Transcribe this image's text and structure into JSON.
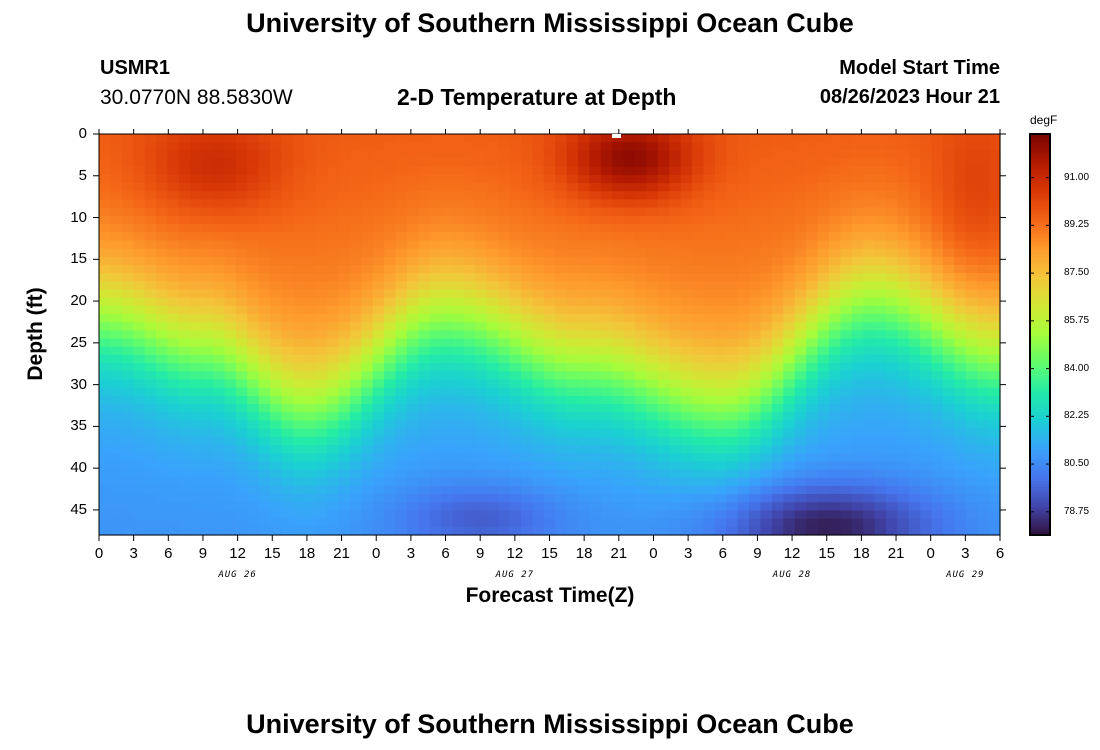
{
  "header": {
    "title": "University of Southern Mississippi Ocean Cube",
    "station_id": "USMR1",
    "coordinates": "30.0770N  88.5830W",
    "plot_title": "2-D Temperature at Depth",
    "model_start_label": "Model Start Time",
    "model_start_value": "08/26/2023 Hour 21"
  },
  "footer": {
    "title": "University of Southern Mississippi Ocean Cube"
  },
  "chart_data": {
    "type": "heatmap",
    "title": "2-D Temperature at Depth",
    "xlabel": "Forecast Time(Z)",
    "ylabel": "Depth (ft)",
    "x_hours_start": 0,
    "x_hours_end": 78,
    "xticks": [
      {
        "hour": 0,
        "label": "0"
      },
      {
        "hour": 3,
        "label": "3"
      },
      {
        "hour": 6,
        "label": "6"
      },
      {
        "hour": 9,
        "label": "9"
      },
      {
        "hour": 12,
        "label": "12"
      },
      {
        "hour": 15,
        "label": "15"
      },
      {
        "hour": 18,
        "label": "18"
      },
      {
        "hour": 21,
        "label": "21"
      },
      {
        "hour": 24,
        "label": "0"
      },
      {
        "hour": 27,
        "label": "3"
      },
      {
        "hour": 30,
        "label": "6"
      },
      {
        "hour": 33,
        "label": "9"
      },
      {
        "hour": 36,
        "label": "12"
      },
      {
        "hour": 39,
        "label": "15"
      },
      {
        "hour": 42,
        "label": "18"
      },
      {
        "hour": 45,
        "label": "21"
      },
      {
        "hour": 48,
        "label": "0"
      },
      {
        "hour": 51,
        "label": "3"
      },
      {
        "hour": 54,
        "label": "6"
      },
      {
        "hour": 57,
        "label": "9"
      },
      {
        "hour": 60,
        "label": "12"
      },
      {
        "hour": 63,
        "label": "15"
      },
      {
        "hour": 66,
        "label": "18"
      },
      {
        "hour": 69,
        "label": "21"
      },
      {
        "hour": 72,
        "label": "0"
      },
      {
        "hour": 75,
        "label": "3"
      },
      {
        "hour": 78,
        "label": "6"
      }
    ],
    "date_labels": [
      {
        "hour": 12,
        "label": "AUG 26"
      },
      {
        "hour": 36,
        "label": "AUG 27"
      },
      {
        "hour": 60,
        "label": "AUG 28"
      },
      {
        "hour": 75,
        "label": "AUG 29"
      }
    ],
    "depth_range_ft": [
      0,
      48
    ],
    "yticks": [
      0,
      5,
      10,
      15,
      20,
      25,
      30,
      35,
      40,
      45
    ],
    "colorbar": {
      "unit": "degF",
      "range": [
        77.9,
        92.6
      ],
      "ticks": [
        "78.75",
        "80.50",
        "82.25",
        "84.00",
        "85.75",
        "87.50",
        "89.25",
        "91.00"
      ]
    },
    "thermocline_depth_ft": [
      {
        "hour": 0,
        "depth": 22
      },
      {
        "hour": 9,
        "depth": 26
      },
      {
        "hour": 18,
        "depth": 33
      },
      {
        "hour": 30,
        "depth": 22
      },
      {
        "hour": 42,
        "depth": 28
      },
      {
        "hour": 54,
        "depth": 33
      },
      {
        "hour": 67,
        "depth": 20
      },
      {
        "hour": 78,
        "depth": 27
      }
    ],
    "features": {
      "warm_core_1": {
        "hour": 10,
        "depth": 4,
        "value": 91.0
      },
      "warm_core_2": {
        "hour": 46,
        "depth": 3,
        "value": 92.3
      },
      "cold_core_1": {
        "hour": 33,
        "depth": 46,
        "value": 79.5
      },
      "cold_core_2": {
        "hour": 63,
        "depth": 47,
        "value": 78.2
      }
    },
    "colors": [
      "#30123b",
      "#4145ab",
      "#4675ed",
      "#39a2fc",
      "#1bcfd4",
      "#24eca6",
      "#61fc6c",
      "#a4fc3b",
      "#d1e834",
      "#f3c63a",
      "#fe9b2d",
      "#f36315",
      "#d93806",
      "#b11901",
      "#7a0402"
    ]
  }
}
